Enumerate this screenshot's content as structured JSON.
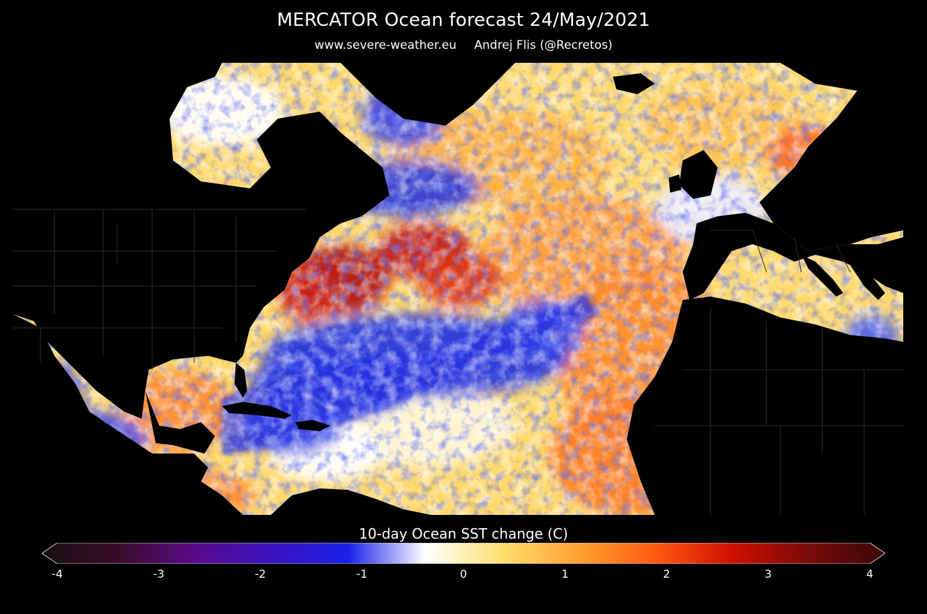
{
  "header": {
    "title": "MERCATOR Ocean forecast  24/May/2021",
    "website": "www.severe-weather.eu",
    "author": "Andrej Flis (@Recretos)"
  },
  "map": {
    "description_region": "North Atlantic Ocean, Gulf of Mexico, Caribbean, Mediterranean, eastern Pacific",
    "land_color": "#000000",
    "border_color": "#2a2a2a"
  },
  "colorbar": {
    "label": "10-day Ocean SST change (C)",
    "min": -4,
    "max": 4,
    "ticks": [
      "-4",
      "-3",
      "-2",
      "-1",
      "0",
      "1",
      "2",
      "3",
      "4"
    ],
    "colors": [
      "#1a1010",
      "#3a0c2a",
      "#5a0a8a",
      "#3a12c0",
      "#1a22e8",
      "#ffffff",
      "#ffe070",
      "#ffa030",
      "#ff5a10",
      "#d01000",
      "#7a0a0a",
      "#3a0808"
    ]
  }
}
